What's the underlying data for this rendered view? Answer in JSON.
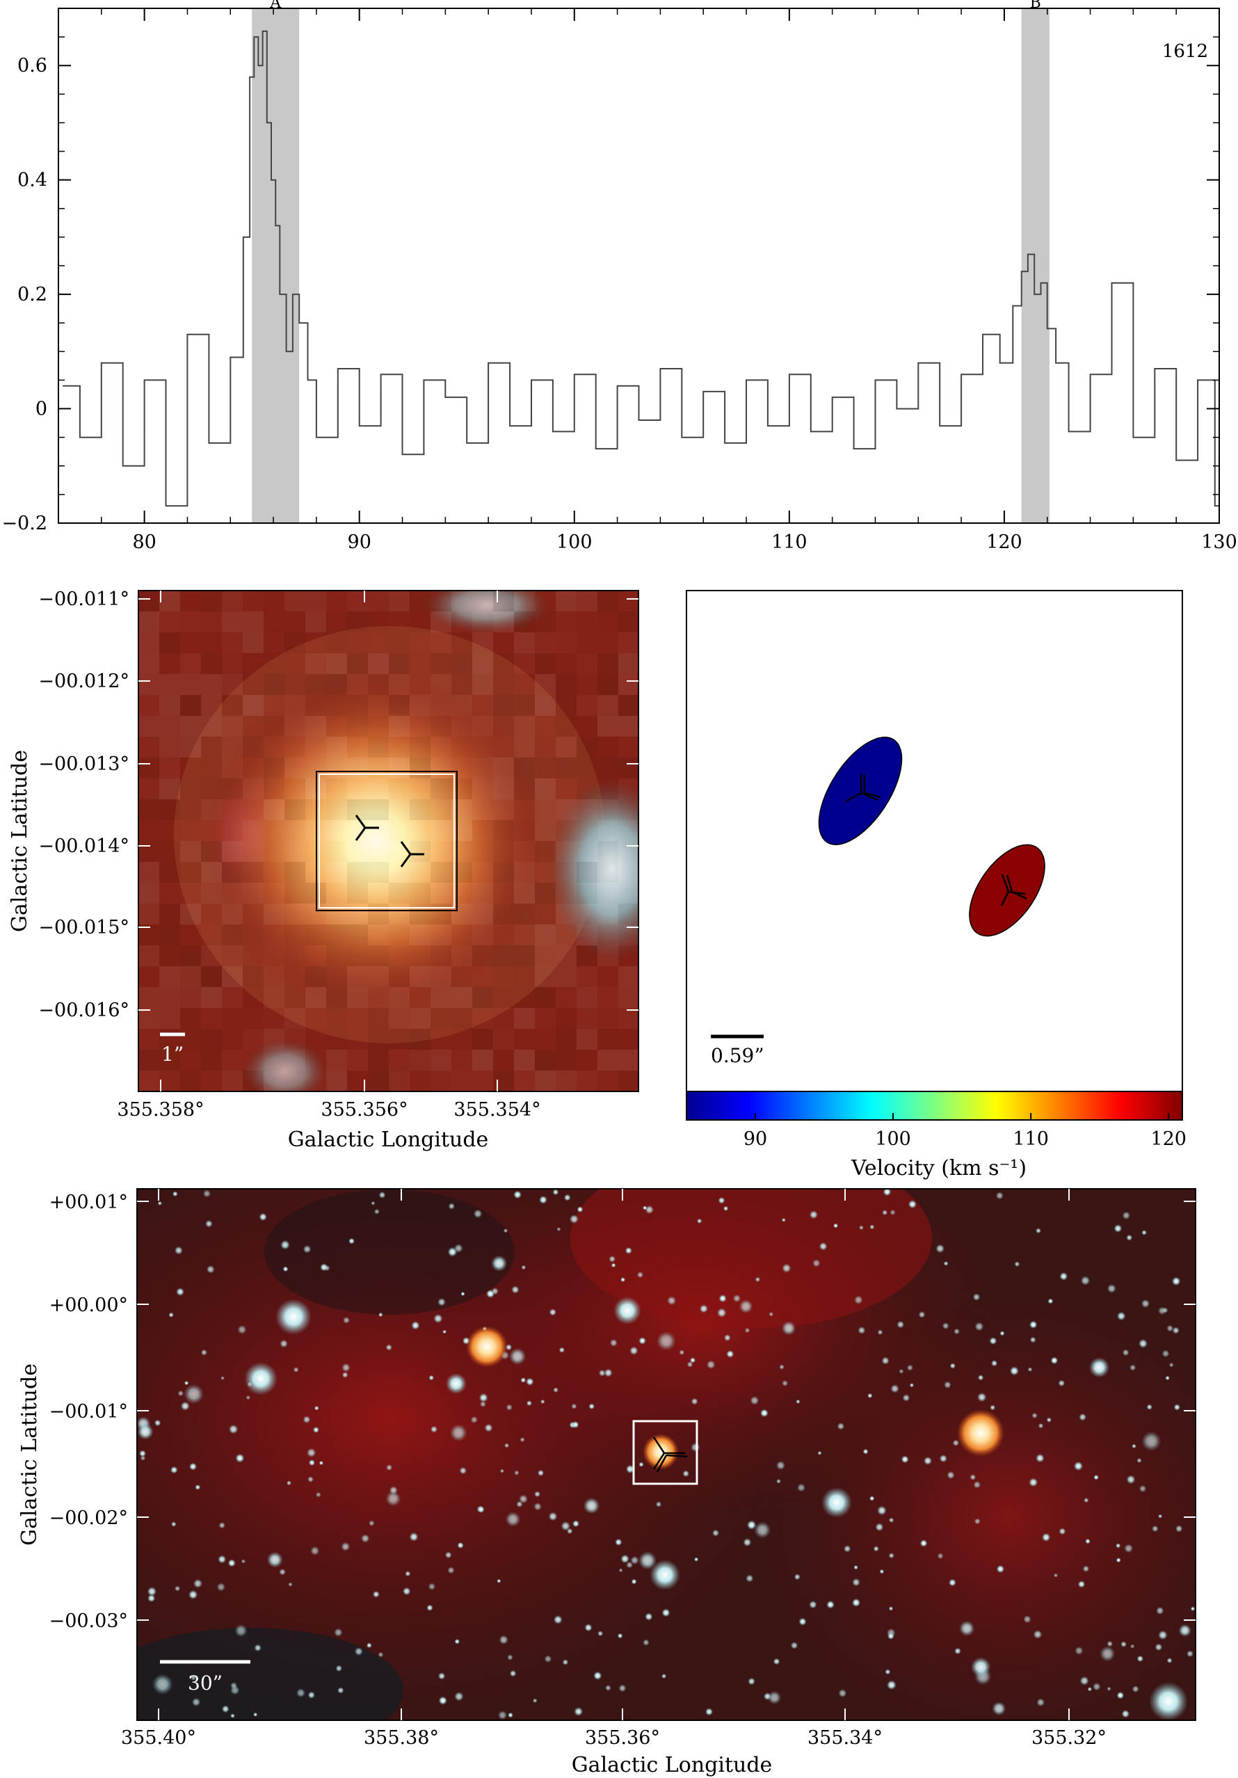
{
  "chart_data": [
    {
      "type": "line",
      "step": true,
      "title": "",
      "annotation": "1612",
      "xlim": [
        76,
        130
      ],
      "ylim": [
        -0.2,
        0.7
      ],
      "xticks": [
        80,
        90,
        100,
        110,
        120,
        130
      ],
      "xtick_labels": [
        "80",
        "90",
        "100",
        "110",
        "120",
        "130"
      ],
      "yticks": [
        -0.2,
        0,
        0.2,
        0.4,
        0.6
      ],
      "ytick_labels": [
        "−0.2",
        "0",
        "0.2",
        "0.4",
        "0.6"
      ],
      "highlight_bands": [
        {
          "label": "A",
          "range": [
            85.0,
            87.2
          ]
        },
        {
          "label": "B",
          "range": [
            120.8,
            122.1
          ]
        }
      ],
      "series": [
        {
          "x": [
            76.2,
            77.0,
            78.0,
            79.0,
            80.0,
            81.0,
            82.0,
            83.0,
            84.0,
            84.6,
            84.9,
            85.1,
            85.3,
            85.5,
            85.7,
            85.9,
            86.1,
            86.3,
            86.6,
            86.9,
            87.2,
            87.6,
            88.0,
            89.0,
            90.0,
            91.0,
            92.0,
            93.0,
            94.0,
            95.0,
            96.0,
            97.0,
            98.0,
            99.0,
            100.0,
            101.0,
            102.0,
            103.0,
            104.0,
            105.0,
            106.0,
            107.0,
            108.0,
            109.0,
            110.0,
            111.0,
            112.0,
            113.0,
            114.0,
            115.0,
            116.0,
            117.0,
            118.0,
            119.0,
            119.8,
            120.4,
            120.8,
            121.1,
            121.4,
            121.7,
            122.0,
            122.4,
            123.0,
            124.0,
            125.0,
            126.0,
            127.0,
            128.0,
            129.0,
            129.8
          ],
          "y": [
            0.04,
            -0.05,
            0.08,
            -0.1,
            0.05,
            -0.17,
            0.13,
            -0.06,
            0.09,
            0.3,
            0.58,
            0.65,
            0.6,
            0.66,
            0.5,
            0.4,
            0.32,
            0.2,
            0.1,
            0.2,
            0.15,
            0.05,
            -0.05,
            0.07,
            -0.03,
            0.06,
            -0.08,
            0.05,
            0.02,
            -0.06,
            0.08,
            -0.03,
            0.05,
            -0.04,
            0.06,
            -0.07,
            0.04,
            -0.02,
            0.07,
            -0.05,
            0.03,
            -0.06,
            0.05,
            -0.03,
            0.06,
            -0.04,
            0.02,
            -0.07,
            0.05,
            0.0,
            0.08,
            -0.03,
            0.06,
            0.13,
            0.08,
            0.18,
            0.24,
            0.27,
            0.2,
            0.22,
            0.14,
            0.08,
            -0.04,
            0.06,
            0.22,
            -0.05,
            0.07,
            -0.09,
            0.05,
            -0.17
          ]
        }
      ]
    },
    {
      "type": "image",
      "xlabel": "Galactic Longitude",
      "ylabel": "Galactic Latitude",
      "xtick_labels": [
        "355.358°",
        "355.356°",
        "355.354°"
      ],
      "ytick_labels": [
        "−00.011°",
        "−00.012°",
        "−00.013°",
        "−00.014°",
        "−00.015°",
        "−00.016°"
      ],
      "scale_bar": "1”"
    },
    {
      "type": "scatter",
      "xlabel": "",
      "ylabel": "",
      "colorbar_label": "Velocity (km s⁻¹)",
      "colorbar_range": [
        85,
        121
      ],
      "colorbar_ticks": [
        90,
        100,
        110,
        120
      ],
      "colorbar_tick_labels": [
        "90",
        "100",
        "110",
        "120"
      ],
      "scale_bar": "0.59”",
      "points": [
        {
          "velocity": 86,
          "color": "#00008f"
        },
        {
          "velocity": 121,
          "color": "#8b0000"
        }
      ]
    },
    {
      "type": "image",
      "xlabel": "Galactic Longitude",
      "ylabel": "Galactic Latitude",
      "xtick_labels": [
        "355.40°",
        "355.38°",
        "355.36°",
        "355.34°",
        "355.32°"
      ],
      "ytick_labels": [
        "+00.01°",
        "+00.00°",
        "−00.01°",
        "−00.02°",
        "−00.03°"
      ],
      "scale_bar": "30”"
    }
  ]
}
